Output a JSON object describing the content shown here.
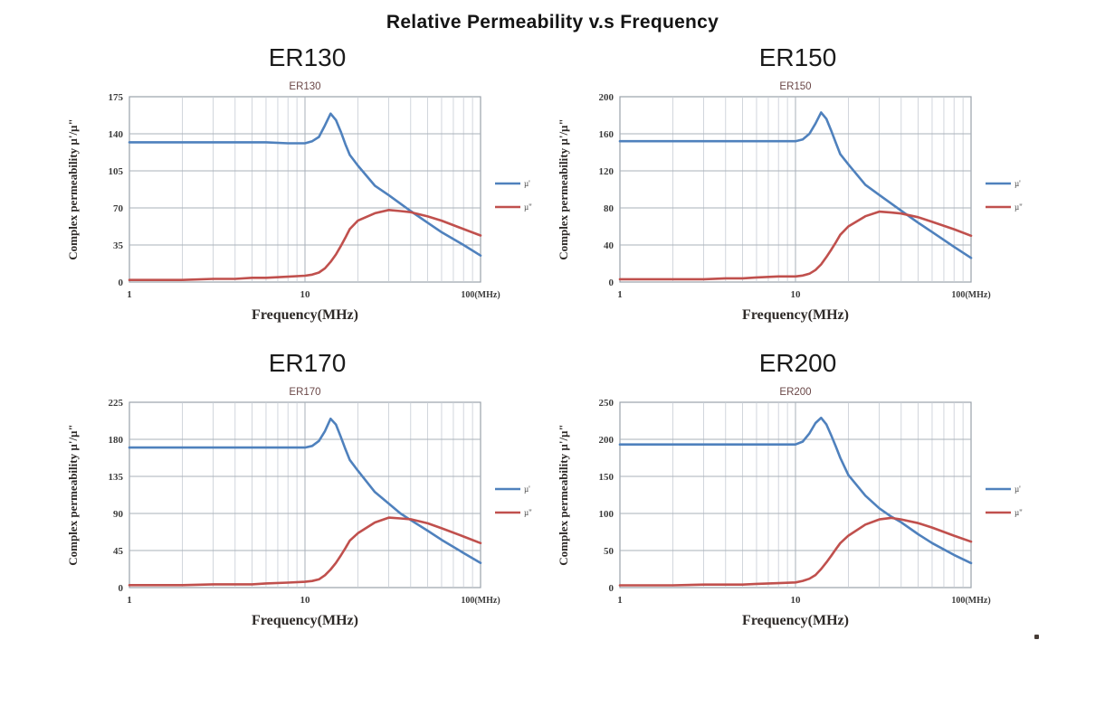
{
  "page": {
    "title": "Relative Permeability v.s Frequency"
  },
  "colors": {
    "mu_prime": "#4f81bd",
    "mu_double_prime": "#c0504d",
    "grid_minor": "#c6ccd4",
    "grid_major": "#aab1ba",
    "plot_border": "#9aa2ab",
    "tick_text": "#3c3c3c",
    "axis_title_text": "#2e2a28",
    "inner_title_text": "#6b4848",
    "legend_text": "#444444"
  },
  "chart_data": [
    {
      "type": "line",
      "title": "ER130",
      "inner_title": "ER130",
      "xlabel": "Frequency(MHz)",
      "ylabel": "Complex permeability  µ'/µ\"",
      "x_scale": "log",
      "xlim": [
        1,
        100
      ],
      "ylim": [
        0,
        175
      ],
      "yticks": [
        0,
        35,
        70,
        105,
        140,
        175
      ],
      "x_ticks": [
        {
          "v": 1,
          "label": "1"
        },
        {
          "v": 10,
          "label": "10"
        },
        {
          "v": 100,
          "label": "100(MHz)"
        }
      ],
      "legend_position": "right",
      "grid": true,
      "x": [
        1,
        1.5,
        2,
        3,
        4,
        5,
        6,
        8,
        10,
        11,
        12,
        13,
        14,
        15,
        16,
        17,
        18,
        20,
        25,
        30,
        35,
        40,
        50,
        60,
        80,
        100
      ],
      "series": [
        {
          "name": "µ'",
          "color_key": "mu_prime",
          "values": [
            132,
            132,
            132,
            132,
            132,
            132,
            132,
            131,
            131,
            133,
            137,
            148,
            159,
            153,
            142,
            130,
            120,
            110,
            91,
            82,
            74,
            67,
            56,
            47,
            35,
            25
          ]
        },
        {
          "name": "µ\"",
          "color_key": "mu_double_prime",
          "values": [
            2,
            2,
            2,
            3,
            3,
            4,
            4,
            5,
            6,
            7,
            9,
            13,
            19,
            26,
            34,
            42,
            50,
            58,
            65,
            68,
            67,
            66,
            62,
            58,
            50,
            44
          ]
        }
      ]
    },
    {
      "type": "line",
      "title": "ER150",
      "inner_title": "ER150",
      "xlabel": "Frequency(MHz)",
      "ylabel": "Complex permeability  µ'/µ\"",
      "x_scale": "log",
      "xlim": [
        1,
        100
      ],
      "ylim": [
        0,
        200
      ],
      "yticks": [
        0,
        40,
        80,
        120,
        160,
        200
      ],
      "x_ticks": [
        {
          "v": 1,
          "label": "1"
        },
        {
          "v": 10,
          "label": "10"
        },
        {
          "v": 100,
          "label": "100(MHz)"
        }
      ],
      "legend_position": "right",
      "grid": true,
      "x": [
        1,
        1.5,
        2,
        3,
        4,
        5,
        6,
        8,
        10,
        11,
        12,
        13,
        14,
        15,
        16,
        17,
        18,
        20,
        25,
        30,
        35,
        40,
        50,
        60,
        80,
        100
      ],
      "series": [
        {
          "name": "µ'",
          "color_key": "mu_prime",
          "values": [
            152,
            152,
            152,
            152,
            152,
            152,
            152,
            152,
            152,
            154,
            160,
            171,
            183,
            176,
            163,
            150,
            138,
            127,
            105,
            94,
            85,
            77,
            64,
            54,
            38,
            26
          ]
        },
        {
          "name": "µ\"",
          "color_key": "mu_double_prime",
          "values": [
            3,
            3,
            3,
            3,
            4,
            4,
            5,
            6,
            6,
            7,
            9,
            13,
            19,
            27,
            35,
            43,
            51,
            60,
            71,
            76,
            75,
            74,
            70,
            65,
            57,
            50
          ]
        }
      ]
    },
    {
      "type": "line",
      "title": "ER170",
      "inner_title": "ER170",
      "xlabel": "Frequency(MHz)",
      "ylabel": "Complex permeability  µ'/µ\"",
      "x_scale": "log",
      "xlim": [
        1,
        100
      ],
      "ylim": [
        0,
        225
      ],
      "yticks": [
        0,
        45,
        90,
        135,
        180,
        225
      ],
      "x_ticks": [
        {
          "v": 1,
          "label": "1"
        },
        {
          "v": 10,
          "label": "10"
        },
        {
          "v": 100,
          "label": "100(MHz)"
        }
      ],
      "legend_position": "right",
      "grid": true,
      "x": [
        1,
        1.5,
        2,
        3,
        4,
        5,
        6,
        8,
        10,
        11,
        12,
        13,
        14,
        15,
        16,
        17,
        18,
        20,
        25,
        30,
        35,
        40,
        50,
        60,
        80,
        100
      ],
      "series": [
        {
          "name": "µ'",
          "color_key": "mu_prime",
          "values": [
            170,
            170,
            170,
            170,
            170,
            170,
            170,
            170,
            170,
            172,
            178,
            190,
            205,
            198,
            183,
            168,
            155,
            142,
            116,
            102,
            90,
            82,
            69,
            58,
            42,
            30
          ]
        },
        {
          "name": "µ\"",
          "color_key": "mu_double_prime",
          "values": [
            3,
            3,
            3,
            4,
            4,
            4,
            5,
            6,
            7,
            8,
            10,
            15,
            22,
            30,
            39,
            48,
            57,
            66,
            79,
            85,
            84,
            83,
            78,
            72,
            62,
            54
          ]
        }
      ]
    },
    {
      "type": "line",
      "title": "ER200",
      "inner_title": "ER200",
      "xlabel": "Frequency(MHz)",
      "ylabel": "Complex permeability  µ'/µ\"",
      "x_scale": "log",
      "xlim": [
        1,
        100
      ],
      "ylim": [
        0,
        250
      ],
      "yticks": [
        0,
        50,
        100,
        150,
        200,
        250
      ],
      "x_ticks": [
        {
          "v": 1,
          "label": "1"
        },
        {
          "v": 10,
          "label": "10"
        },
        {
          "v": 100,
          "label": "100(MHz)"
        }
      ],
      "legend_position": "right",
      "grid": true,
      "x": [
        1,
        1.5,
        2,
        3,
        4,
        5,
        6,
        8,
        10,
        11,
        12,
        13,
        14,
        15,
        16,
        17,
        18,
        20,
        25,
        30,
        35,
        40,
        50,
        60,
        80,
        100
      ],
      "series": [
        {
          "name": "µ'",
          "color_key": "mu_prime",
          "values": [
            193,
            193,
            193,
            193,
            193,
            193,
            193,
            193,
            193,
            197,
            208,
            222,
            229,
            220,
            205,
            190,
            175,
            152,
            124,
            107,
            96,
            88,
            72,
            60,
            44,
            33
          ]
        },
        {
          "name": "µ\"",
          "color_key": "mu_double_prime",
          "values": [
            3,
            3,
            3,
            4,
            4,
            4,
            5,
            6,
            7,
            9,
            12,
            17,
            25,
            34,
            43,
            52,
            60,
            70,
            85,
            92,
            94,
            92,
            87,
            81,
            70,
            62
          ]
        }
      ]
    }
  ]
}
